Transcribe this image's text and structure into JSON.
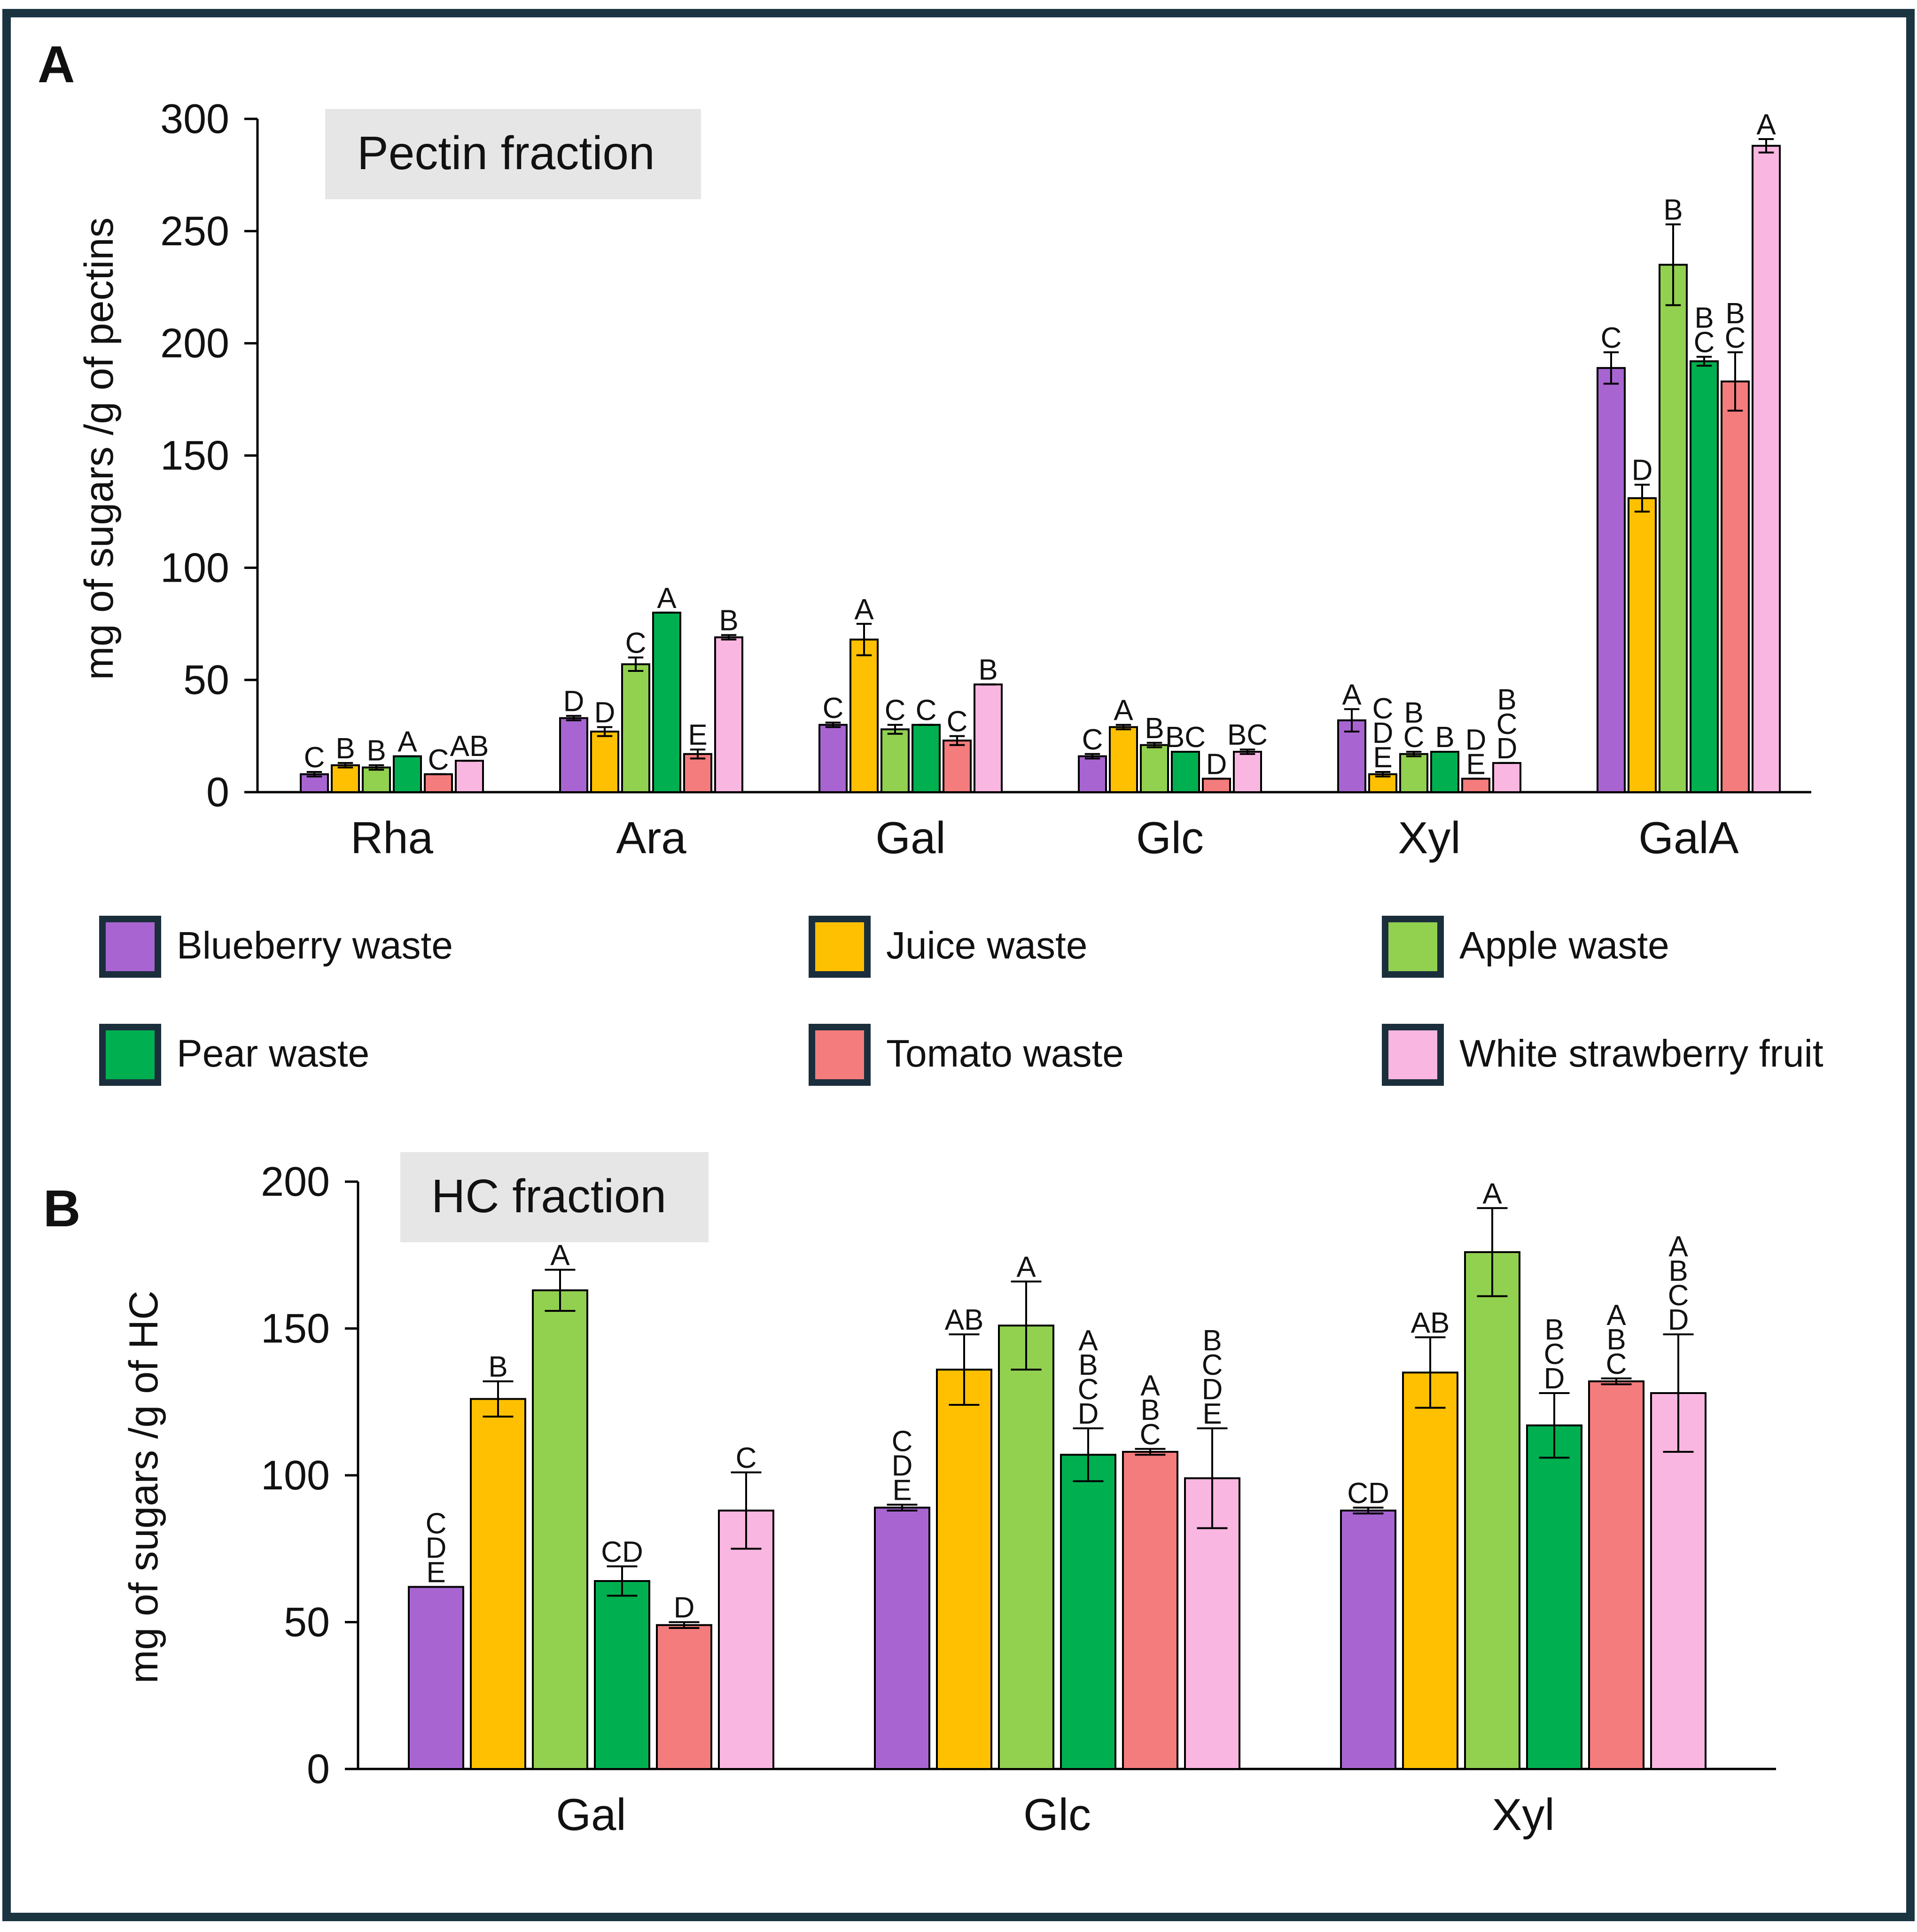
{
  "legend": {
    "items": [
      {
        "label": "Blueberry waste",
        "color": "#A865D1"
      },
      {
        "label": "Juice waste",
        "color": "#FEC000"
      },
      {
        "label": "Apple waste",
        "color": "#92D050"
      },
      {
        "label": "Pear waste",
        "color": "#00B050"
      },
      {
        "label": "Tomato waste",
        "color": "#F47C7C"
      },
      {
        "label": "White strawberry fruit",
        "color": "#F9B6E0"
      }
    ],
    "border_color": "#1B2E3C"
  },
  "frame_color": "#1B3442",
  "chart_data": [
    {
      "panel": "A",
      "type": "bar",
      "title": "Pectin fraction",
      "ylabel": "mg of sugars /g of pectins",
      "xlabel": "",
      "ylim": [
        0,
        300
      ],
      "yticks": [
        0,
        50,
        100,
        150,
        200,
        250,
        300
      ],
      "categories": [
        "Rha",
        "Ara",
        "Gal",
        "Glc",
        "Xyl",
        "GalA"
      ],
      "series": [
        {
          "name": "Blueberry waste",
          "values": [
            8,
            33,
            30,
            16,
            32,
            189
          ],
          "errors": [
            1,
            1,
            1,
            1,
            5,
            7
          ],
          "letters": [
            "C",
            "D",
            "C",
            "C",
            "A",
            "C"
          ]
        },
        {
          "name": "Juice waste",
          "values": [
            12,
            27,
            68,
            29,
            8,
            131
          ],
          "errors": [
            1,
            2,
            7,
            1,
            1,
            6
          ],
          "letters": [
            "B",
            "D",
            "A",
            "A",
            "C\nD\nE",
            "D"
          ]
        },
        {
          "name": "Apple waste",
          "values": [
            11,
            57,
            28,
            21,
            17,
            235
          ],
          "errors": [
            1,
            3,
            2,
            1,
            1,
            18
          ],
          "letters": [
            "B",
            "C",
            "C",
            "B",
            "B\nC",
            "B"
          ]
        },
        {
          "name": "Pear waste",
          "values": [
            16,
            80,
            30,
            18,
            18,
            192
          ],
          "errors": [
            0,
            0,
            0,
            0,
            0,
            2
          ],
          "letters": [
            "A",
            "A",
            "C",
            "BC",
            "B",
            "B\nC"
          ]
        },
        {
          "name": "Tomato waste",
          "values": [
            8,
            17,
            23,
            6,
            6,
            183
          ],
          "errors": [
            0,
            2,
            2,
            0,
            0,
            13
          ],
          "letters": [
            "C",
            "E",
            "C",
            "D",
            "D\nE",
            "B\nC"
          ]
        },
        {
          "name": "White strawberry fruit",
          "values": [
            14,
            69,
            48,
            18,
            13,
            288
          ],
          "errors": [
            0,
            1,
            0,
            1,
            0,
            3
          ],
          "letters": [
            "AB",
            "B",
            "B",
            "BC",
            "B\nC\nD",
            "A"
          ]
        }
      ]
    },
    {
      "panel": "B",
      "type": "bar",
      "title": "HC fraction",
      "ylabel": "mg of sugars /g of HC",
      "xlabel": "",
      "ylim": [
        0,
        200
      ],
      "yticks": [
        0,
        50,
        100,
        150,
        200
      ],
      "categories": [
        "Gal",
        "Glc",
        "Xyl"
      ],
      "series": [
        {
          "name": "Blueberry waste",
          "values": [
            62,
            89,
            88
          ],
          "errors": [
            0,
            1,
            1
          ],
          "letters": [
            "C\nD\nE",
            "C\nD\nE",
            "CD"
          ]
        },
        {
          "name": "Juice waste",
          "values": [
            126,
            136,
            135
          ],
          "errors": [
            6,
            12,
            12
          ],
          "letters": [
            "B",
            "AB",
            "AB"
          ]
        },
        {
          "name": "Apple waste",
          "values": [
            163,
            151,
            176
          ],
          "errors": [
            7,
            15,
            15
          ],
          "letters": [
            "A",
            "A",
            "A"
          ]
        },
        {
          "name": "Pear waste",
          "values": [
            64,
            107,
            117
          ],
          "errors": [
            5,
            9,
            11
          ],
          "letters": [
            "CD",
            "A\nB\nC\nD",
            "B\nC\nD"
          ]
        },
        {
          "name": "Tomato waste",
          "values": [
            49,
            108,
            132
          ],
          "errors": [
            1,
            1,
            1
          ],
          "letters": [
            "D",
            "A\nB\nC",
            "A\nB\nC"
          ]
        },
        {
          "name": "White strawberry fruit",
          "values": [
            88,
            99,
            128
          ],
          "errors": [
            13,
            17,
            20
          ],
          "letters": [
            "C",
            "B\nC\nD\nE",
            "A\nB\nC\nD"
          ]
        }
      ]
    }
  ]
}
